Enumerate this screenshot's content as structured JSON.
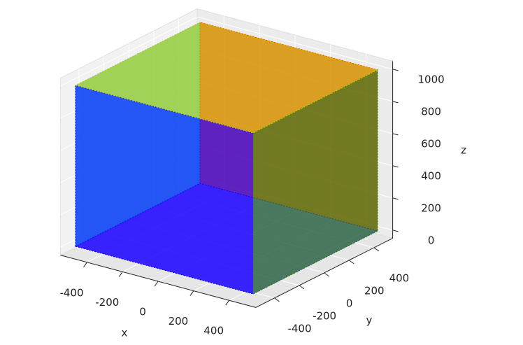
{
  "chart_data": {
    "type": "scatter3d",
    "xlabel": "x",
    "ylabel": "y",
    "zlabel": "z",
    "xlim": [
      -550,
      550
    ],
    "ylim": [
      -550,
      550
    ],
    "zlim": [
      -50,
      1050
    ],
    "xticks": [
      -400,
      -200,
      0,
      200,
      400
    ],
    "yticks": [
      -400,
      -200,
      0,
      200,
      400
    ],
    "zticks": [
      0,
      200,
      400,
      600,
      800,
      1000
    ],
    "grid": true,
    "faces": [
      {
        "color": "#00d8d8",
        "x": [
          -500,
          -500,
          -500,
          -500
        ],
        "y": [
          -500,
          500,
          500,
          -500
        ],
        "z": [
          0,
          0,
          1000,
          1000
        ]
      },
      {
        "color": "#ff0000",
        "x": [
          -500,
          500,
          500,
          -500
        ],
        "y": [
          500,
          500,
          500,
          500
        ],
        "z": [
          0,
          0,
          1000,
          1000
        ]
      },
      {
        "color": "#5a00ff",
        "x": [
          -500,
          500,
          500,
          -500
        ],
        "y": [
          -500,
          -500,
          500,
          500
        ],
        "z": [
          0,
          0,
          0,
          0
        ]
      },
      {
        "color": "#0000ff",
        "x": [
          -500,
          500,
          500,
          -500
        ],
        "y": [
          -500,
          -500,
          -500,
          -500
        ],
        "z": [
          0,
          0,
          1000,
          1000
        ]
      },
      {
        "color": "#1e8c00",
        "x": [
          500,
          500,
          500,
          500
        ],
        "y": [
          -500,
          500,
          500,
          -500
        ],
        "z": [
          0,
          0,
          1000,
          1000
        ]
      },
      {
        "color": "#c8c800",
        "x": [
          -500,
          500,
          500,
          -500
        ],
        "y": [
          -500,
          -500,
          500,
          500
        ],
        "z": [
          1000,
          1000,
          1000,
          1000
        ]
      }
    ]
  }
}
